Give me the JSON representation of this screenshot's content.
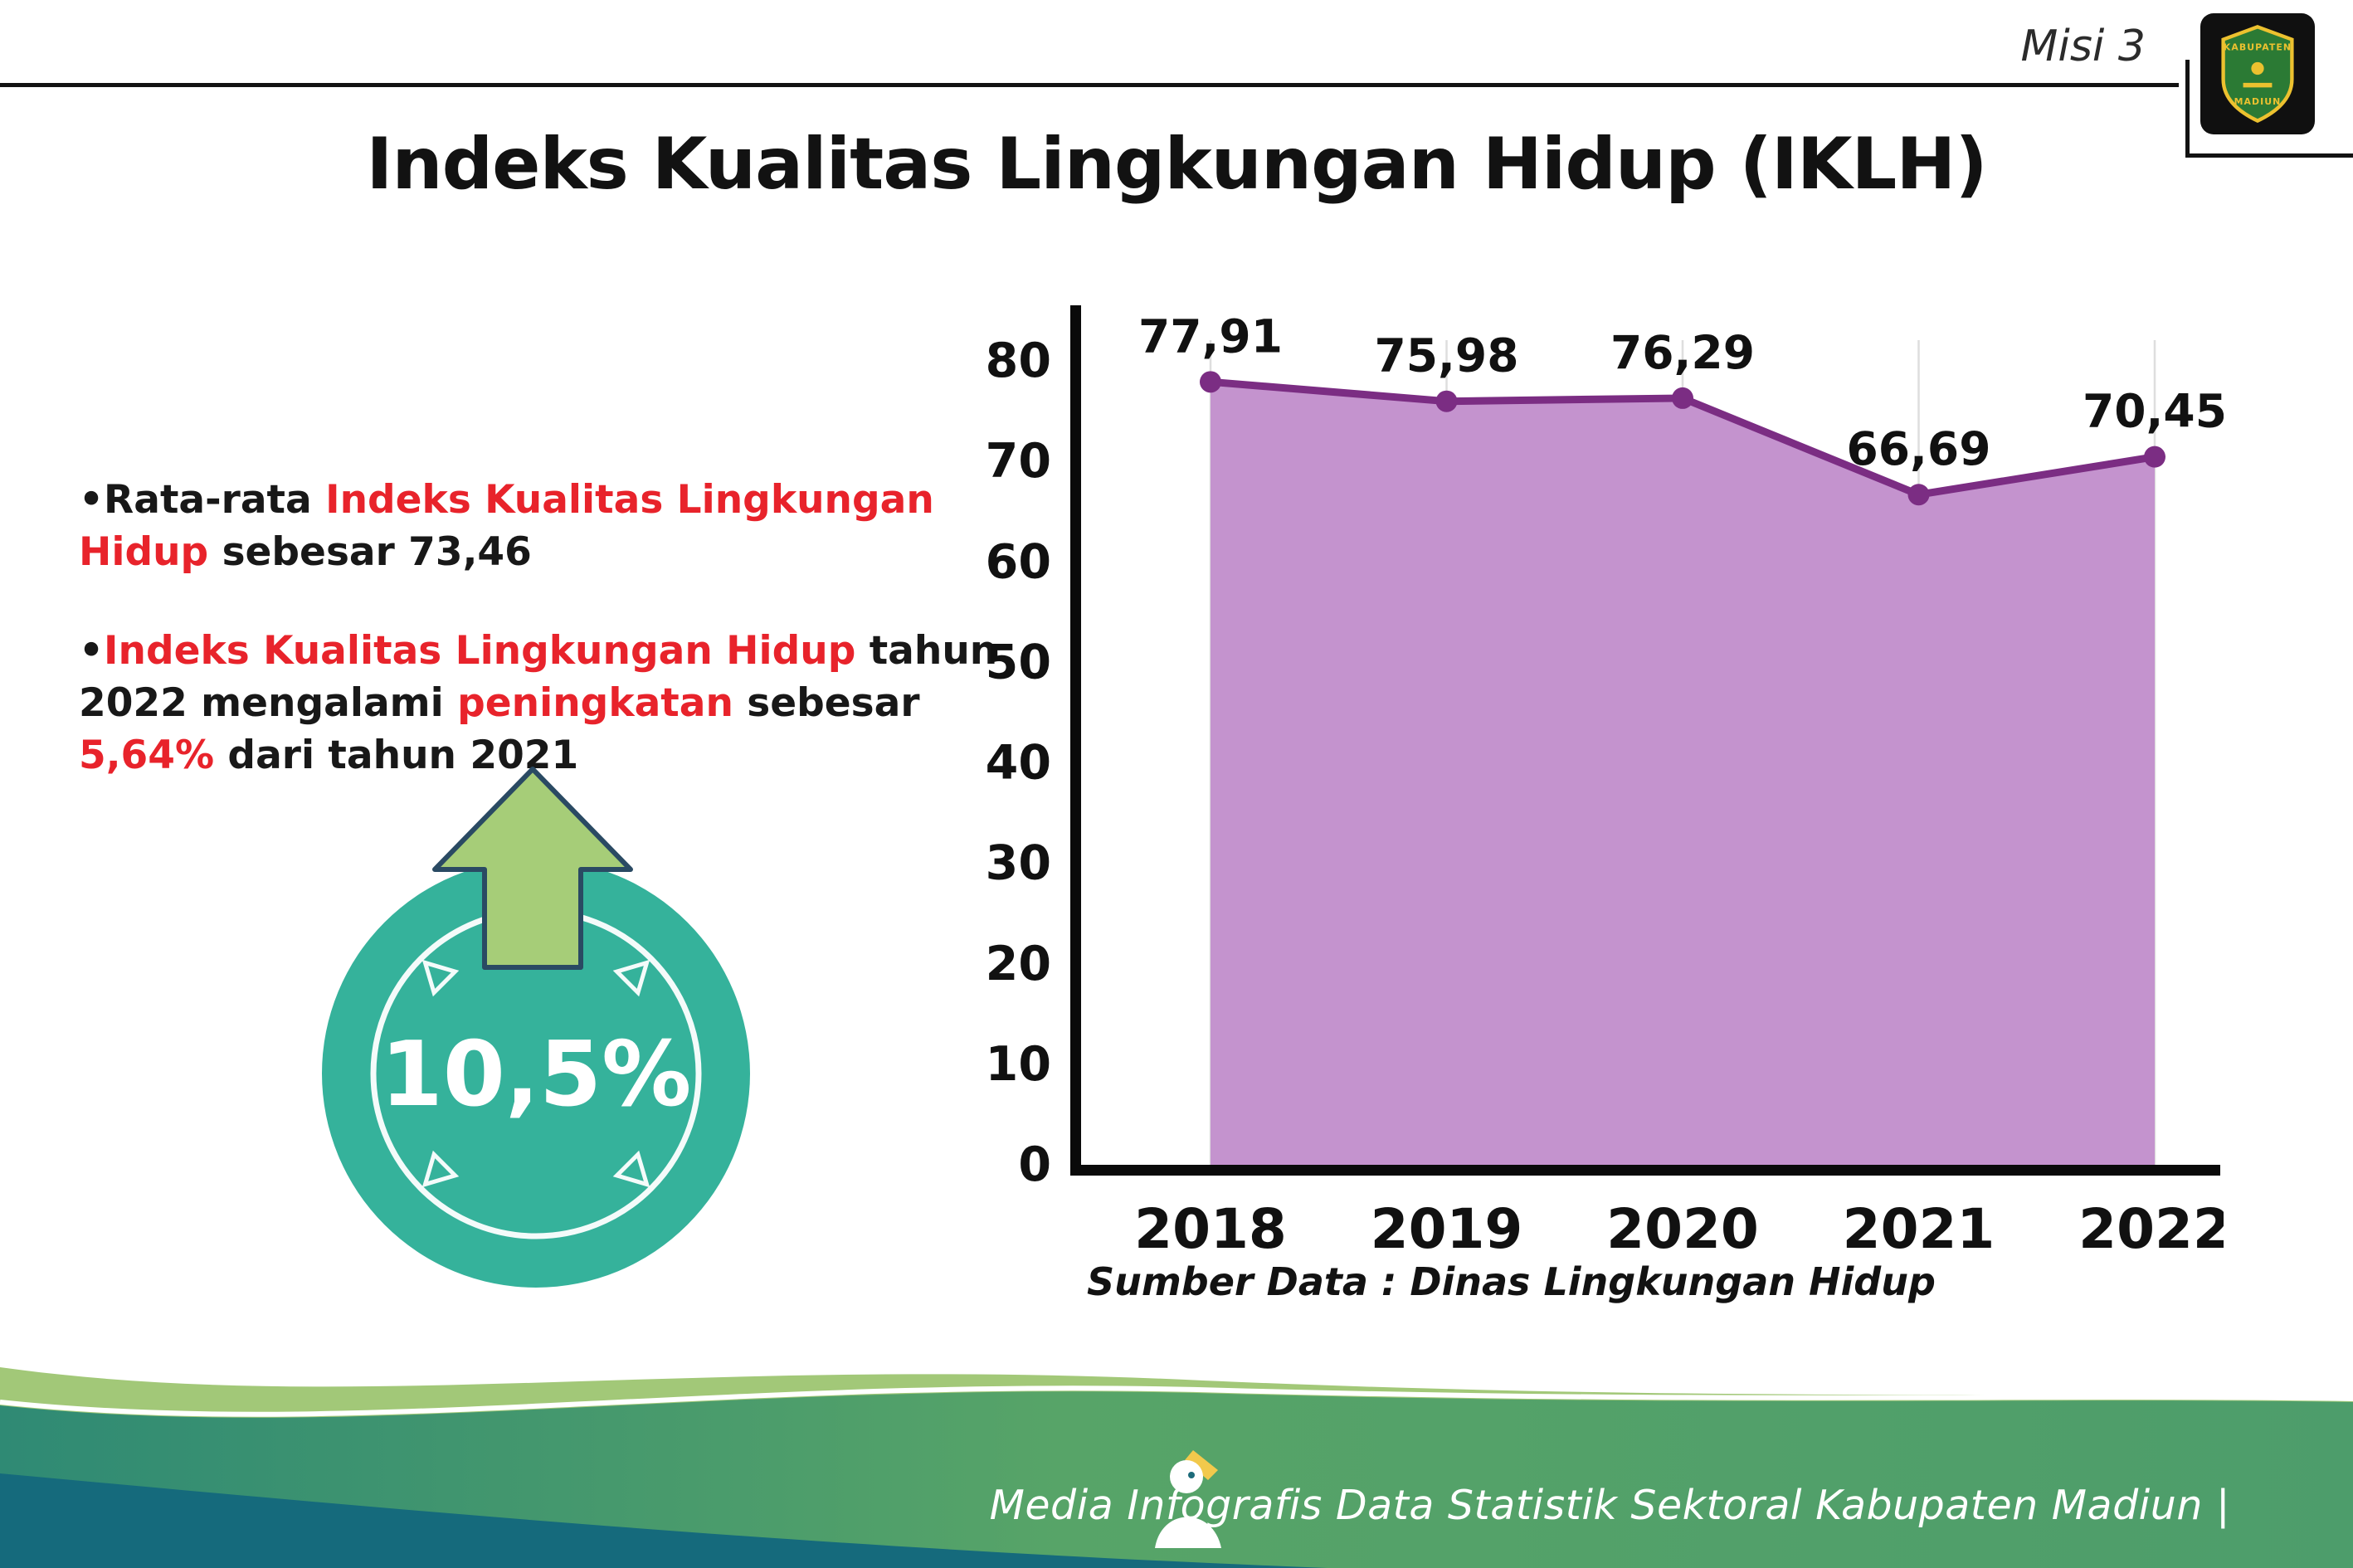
{
  "colors": {
    "accent_red": "#e8232b",
    "chart_area": "#c493ce",
    "chart_line": "#7b2d83",
    "badge_teal": "#35b29b",
    "arrow_green": "#a6cd78",
    "footer_dark": "#156a7c"
  },
  "header": {
    "misi": "Misi 3",
    "title": "Indeks Kualitas Lingkungan Hidup (IKLH)",
    "logo_line1": "KABUPATEN",
    "logo_line2": "MADIUN"
  },
  "bullets": {
    "marker": "•",
    "item1": {
      "seg1": "Rata-rata ",
      "seg2": "Indeks Kualitas Lingkungan Hidup",
      "seg3": " sebesar 73,46"
    },
    "item2": {
      "seg1": "Indeks Kualitas Lingkungan Hidup",
      "seg2": " tahun 2022 mengalami ",
      "seg3": "peningkatan",
      "seg4": " sebesar ",
      "seg5": "5,64%",
      "seg6": " dari tahun 2021"
    }
  },
  "badge": {
    "value": "10,5%"
  },
  "chart_data": {
    "type": "area",
    "categories": [
      "2018",
      "2019",
      "2020",
      "2021",
      "2022"
    ],
    "values": [
      77.91,
      75.98,
      76.29,
      66.69,
      70.45
    ],
    "value_labels": [
      "77,91",
      "75,98",
      "76,29",
      "66,69",
      "70,45"
    ],
    "title": "Indeks Kualitas Lingkungan Hidup (IKLH)",
    "xlabel": "",
    "ylabel": "",
    "ylim": [
      0,
      80
    ],
    "ytick_step": 10,
    "grid": "vertical",
    "legend": "none",
    "source": "Sumber Data : Dinas Lingkungan Hidup",
    "colors": {
      "area": "#c493ce",
      "line": "#7b2d83",
      "marker": "#7b2d83"
    }
  },
  "footer": {
    "credit": "Media Infografis Data Statistik Sektoral Kabupaten Madiun |"
  }
}
